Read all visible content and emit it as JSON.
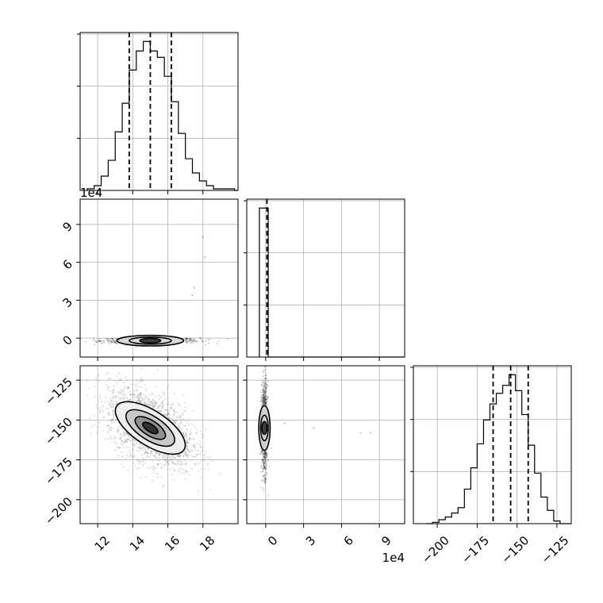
{
  "chart_data": {
    "type": "corner",
    "grid": true,
    "params": [
      {
        "range": [
          11,
          20
        ],
        "ticks": [
          12,
          14,
          16,
          18
        ],
        "tick_labels": [
          "12",
          "14",
          "16",
          "18"
        ]
      },
      {
        "range": [
          -1.5,
          11
        ],
        "ticks": [
          0,
          3,
          6,
          9
        ],
        "tick_labels": [
          "0",
          "3",
          "6",
          "9"
        ],
        "offset_text": "1e4"
      },
      {
        "range": [
          -215,
          -116
        ],
        "ticks": [
          -200,
          -175,
          -150,
          -125
        ],
        "tick_labels": [
          "−200",
          "−175",
          "−150",
          "−125"
        ]
      }
    ],
    "histograms": [
      {
        "param": 0,
        "quantiles": [
          13.8,
          15.0,
          16.2
        ],
        "bin_edges": [
          11.4,
          11.8,
          12.2,
          12.6,
          13.0,
          13.4,
          13.8,
          14.2,
          14.6,
          15.0,
          15.4,
          15.8,
          16.2,
          16.6,
          17.0,
          17.4,
          17.8,
          18.2,
          18.6,
          19.0,
          19.4,
          19.8
        ],
        "counts": [
          1,
          3,
          9,
          19,
          37,
          55,
          76,
          88,
          94,
          88,
          84,
          72,
          56,
          36,
          20,
          11,
          6,
          3,
          1,
          1,
          1
        ]
      },
      {
        "param": 1,
        "quantiles": [
          0.1
        ],
        "bin_edges": [
          -0.5,
          0.2
        ],
        "counts": [
          100
        ]
      },
      {
        "param": 2,
        "quantiles": [
          -165,
          -154,
          -143
        ],
        "bin_edges": [
          -207,
          -203,
          -199,
          -195,
          -191,
          -187,
          -183,
          -179,
          -175,
          -171,
          -167,
          -163,
          -159,
          -155,
          -151,
          -147,
          -143,
          -139,
          -135,
          -131,
          -127,
          -123
        ],
        "counts": [
          0,
          1,
          3,
          5,
          8,
          12,
          26,
          42,
          60,
          78,
          90,
          98,
          104,
          112,
          100,
          82,
          59,
          38,
          20,
          10,
          2
        ]
      }
    ],
    "pairs": [
      {
        "x_param": 0,
        "y_param": 1,
        "center": [
          15.0,
          -0.2
        ],
        "contour_halfwidths": [
          [
            0.6,
            0.18
          ],
          [
            1.2,
            0.28
          ],
          [
            1.9,
            0.42
          ]
        ],
        "outliers": [
          [
            18.0,
            8.0
          ],
          [
            18.1,
            6.4
          ],
          [
            17.5,
            4.0
          ],
          [
            17.4,
            3.4
          ]
        ]
      },
      {
        "x_param": 0,
        "y_param": 2,
        "center": [
          15.0,
          -155
        ],
        "covariance": [
          [
            1.44,
            -11.0
          ],
          [
            -11.0,
            144.0
          ]
        ],
        "contour_scales": [
          0.5,
          1.0,
          1.6,
          2.3
        ]
      },
      {
        "x_param": 1,
        "y_param": 2,
        "center": [
          -0.1,
          -155
        ],
        "contour_halfwidths": [
          [
            0.2,
            4.0
          ],
          [
            0.3,
            8.0
          ],
          [
            0.45,
            14.0
          ]
        ],
        "outliers": [
          [
            3.8,
            -155.0
          ],
          [
            7.5,
            -158.0
          ],
          [
            8.3,
            -158.0
          ],
          [
            1.5,
            -152.0
          ]
        ]
      }
    ]
  }
}
